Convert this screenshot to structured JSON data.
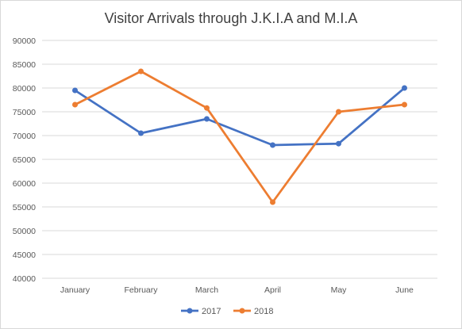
{
  "chart_data": {
    "type": "line",
    "title": "Visitor Arrivals through J.K.I.A and M.I.A",
    "categories": [
      "January",
      "February",
      "March",
      "April",
      "May",
      "June"
    ],
    "series": [
      {
        "name": "2017",
        "color": "#4472C4",
        "values": [
          79500,
          70500,
          73500,
          68000,
          68300,
          80000
        ]
      },
      {
        "name": "2018",
        "color": "#ED7D31",
        "values": [
          76500,
          83500,
          75800,
          56000,
          75000,
          76500
        ]
      }
    ],
    "ylim": [
      40000,
      90000
    ],
    "yticks": [
      "40000",
      "45000",
      "50000",
      "55000",
      "60000",
      "65000",
      "70000",
      "75000",
      "80000",
      "85000",
      "90000"
    ],
    "grid": true,
    "legend": "bottom",
    "xlabel": "",
    "ylabel": ""
  }
}
